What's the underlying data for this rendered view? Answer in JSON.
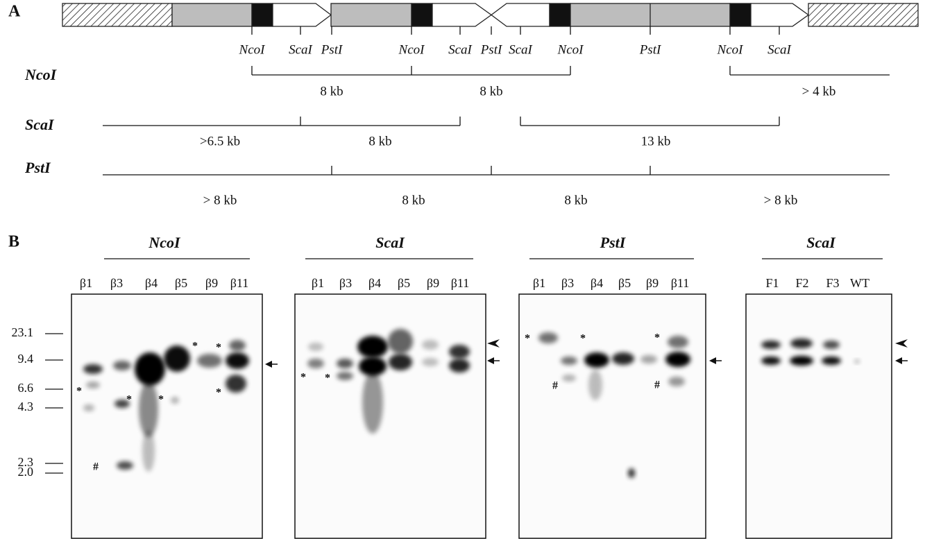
{
  "panel_a": {
    "label": "A",
    "sites": [
      "NcoI",
      "ScaI",
      "PstI",
      "NcoI",
      "ScaI",
      "PstI",
      "ScaI",
      "NcoI",
      "PstI",
      "NcoI",
      "ScaI"
    ],
    "maps": [
      {
        "enzyme": "NcoI",
        "fragments": [
          "8 kb",
          "8 kb",
          "> 4 kb"
        ]
      },
      {
        "enzyme": "ScaI",
        "fragments": [
          ">6.5 kb",
          "8 kb",
          "13 kb"
        ]
      },
      {
        "enzyme": "PstI",
        "fragments": [
          "> 8 kb",
          "8 kb",
          "8 kb",
          "> 8 kb"
        ]
      }
    ]
  },
  "panel_b": {
    "label": "B",
    "size_markers": [
      "23.1",
      "9.4",
      "6.6",
      "4.3",
      "2.3",
      "2.0"
    ],
    "blots": [
      {
        "enzyme": "NcoI",
        "lanes": [
          "β1",
          "β3",
          "β4",
          "β5",
          "β9",
          "β11"
        ]
      },
      {
        "enzyme": "ScaI",
        "lanes": [
          "β1",
          "β3",
          "β4",
          "β5",
          "β9",
          "β11"
        ]
      },
      {
        "enzyme": "PstI",
        "lanes": [
          "β1",
          "β3",
          "β4",
          "β5",
          "β9",
          "β11"
        ]
      },
      {
        "enzyme": "ScaI",
        "lanes": [
          "F1",
          "F2",
          "F3",
          "WT"
        ]
      }
    ]
  },
  "annotations": {
    "asterisk": "*",
    "hash": "#"
  }
}
